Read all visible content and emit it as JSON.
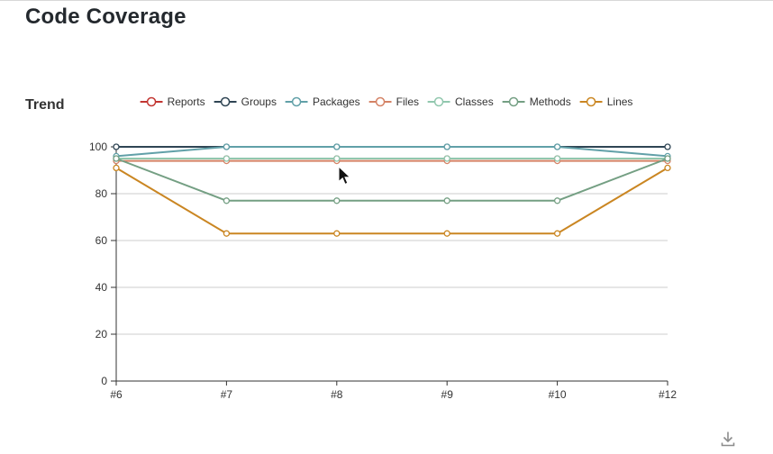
{
  "page": {
    "title": "Code Coverage"
  },
  "trend": {
    "section_title": "Trend"
  },
  "footer": {
    "download_icon": "download-icon"
  },
  "colors": {
    "axis": "#333333",
    "grid": "#cccccc",
    "text": "#333333",
    "title": "#24292e",
    "icon_gray": "#8c8c8c"
  },
  "chart_data": {
    "type": "line",
    "title": "Trend",
    "categories": [
      "#6",
      "#7",
      "#8",
      "#9",
      "#10",
      "#12"
    ],
    "series": [
      {
        "name": "Reports",
        "color": "#c23531",
        "values": [
          95,
          95,
          95,
          95,
          95,
          95
        ]
      },
      {
        "name": "Groups",
        "color": "#2f4554",
        "values": [
          100,
          100,
          100,
          100,
          100,
          100
        ]
      },
      {
        "name": "Packages",
        "color": "#61a0a8",
        "values": [
          96,
          100,
          100,
          100,
          100,
          96
        ]
      },
      {
        "name": "Files",
        "color": "#d48265",
        "values": [
          94,
          94,
          94,
          94,
          94,
          94
        ]
      },
      {
        "name": "Classes",
        "color": "#91c7ae",
        "values": [
          95,
          95,
          95,
          95,
          95,
          95
        ]
      },
      {
        "name": "Methods",
        "color": "#749f83",
        "values": [
          95,
          77,
          77,
          77,
          77,
          95
        ]
      },
      {
        "name": "Lines",
        "color": "#ca8622",
        "values": [
          91,
          63,
          63,
          63,
          63,
          91
        ]
      }
    ],
    "xlabel": "",
    "ylabel": "",
    "ylim": [
      0,
      100
    ],
    "yticks": [
      0,
      20,
      40,
      60,
      80,
      100
    ],
    "grid": true,
    "legend_position": "top",
    "marker": "hollow-circle"
  }
}
